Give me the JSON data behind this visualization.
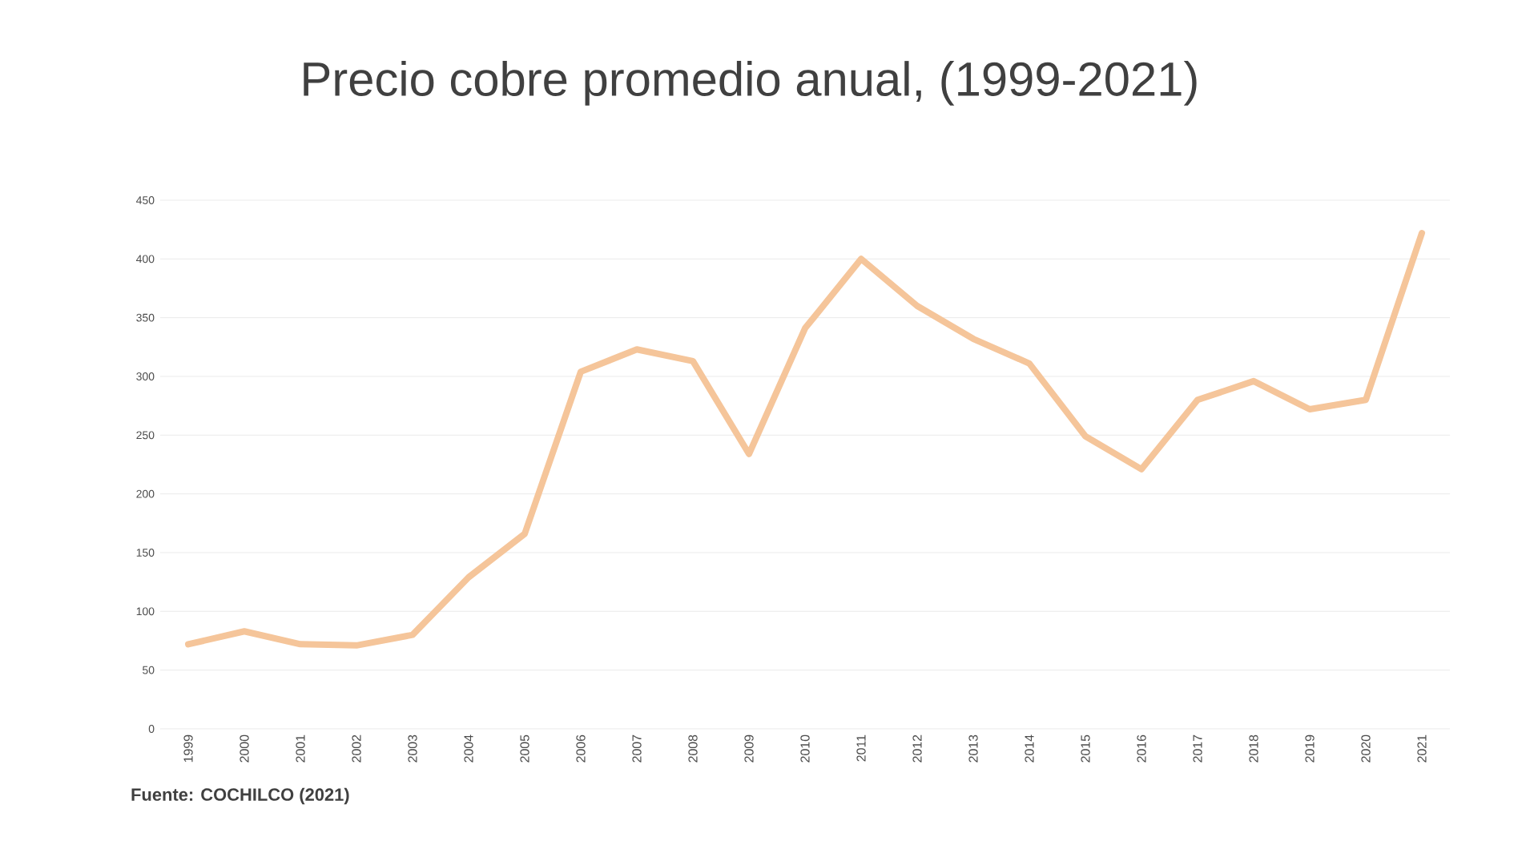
{
  "chart_data": {
    "type": "line",
    "title": "Precio cobre promedio anual, (1999-2021)",
    "categories": [
      "1999",
      "2000",
      "2001",
      "2002",
      "2003",
      "2004",
      "2005",
      "2006",
      "2007",
      "2008",
      "2009",
      "2010",
      "2011",
      "2012",
      "2013",
      "2014",
      "2015",
      "2016",
      "2017",
      "2018",
      "2019",
      "2020",
      "2021"
    ],
    "series": [
      {
        "color": "#f5c59a",
        "values": [
          72,
          83,
          72,
          71,
          80,
          129,
          166,
          304,
          323,
          313,
          234,
          341,
          400,
          360,
          332,
          311,
          249,
          221,
          280,
          296,
          272,
          280,
          422
        ]
      }
    ],
    "ylim": [
      0,
      450
    ],
    "yticks": [
      0,
      50,
      100,
      150,
      200,
      250,
      300,
      350,
      400,
      450
    ],
    "grid": "y",
    "marker": "none",
    "line_style": "solid",
    "annotations": [
      "Fuente: COCHILCO (2021)"
    ]
  }
}
